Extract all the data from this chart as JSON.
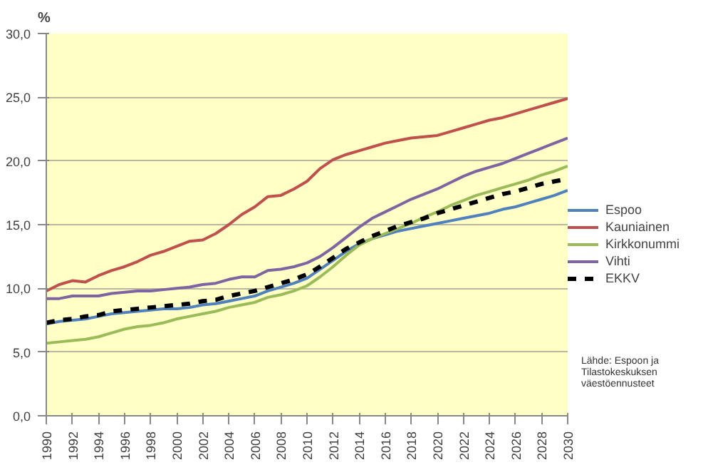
{
  "chart_data": {
    "type": "line",
    "ylabel": "%",
    "x": [
      1990,
      1991,
      1992,
      1993,
      1994,
      1995,
      1996,
      1997,
      1998,
      1999,
      2000,
      2001,
      2002,
      2003,
      2004,
      2005,
      2006,
      2007,
      2008,
      2009,
      2010,
      2011,
      2012,
      2013,
      2014,
      2015,
      2016,
      2017,
      2018,
      2019,
      2020,
      2021,
      2022,
      2023,
      2024,
      2025,
      2026,
      2027,
      2028,
      2029,
      2030
    ],
    "series": [
      {
        "name": "Espoo",
        "color": "#4f81bd",
        "values": [
          7.2,
          7.4,
          7.5,
          7.6,
          7.8,
          8.0,
          8.1,
          8.2,
          8.3,
          8.4,
          8.4,
          8.5,
          8.7,
          8.8,
          9.0,
          9.2,
          9.4,
          9.8,
          10.1,
          10.4,
          10.8,
          11.5,
          12.2,
          12.9,
          13.5,
          13.9,
          14.2,
          14.5,
          14.7,
          14.9,
          15.1,
          15.3,
          15.5,
          15.7,
          15.9,
          16.2,
          16.4,
          16.7,
          17.0,
          17.3,
          17.7
        ]
      },
      {
        "name": "Kauniainen",
        "color": "#c0504d",
        "values": [
          9.8,
          10.3,
          10.6,
          10.5,
          11.0,
          11.4,
          11.7,
          12.1,
          12.6,
          12.9,
          13.3,
          13.7,
          13.8,
          14.3,
          15.0,
          15.8,
          16.4,
          17.2,
          17.3,
          17.8,
          18.4,
          19.4,
          20.1,
          20.5,
          20.8,
          21.1,
          21.4,
          21.6,
          21.8,
          21.9,
          22.0,
          22.3,
          22.6,
          22.9,
          23.2,
          23.4,
          23.7,
          24.0,
          24.3,
          24.6,
          24.9
        ]
      },
      {
        "name": "Kirkkonummi",
        "color": "#9bbb59",
        "values": [
          5.7,
          5.8,
          5.9,
          6.0,
          6.2,
          6.5,
          6.8,
          7.0,
          7.1,
          7.3,
          7.6,
          7.8,
          8.0,
          8.2,
          8.5,
          8.7,
          8.9,
          9.3,
          9.5,
          9.8,
          10.2,
          10.9,
          11.7,
          12.6,
          13.4,
          13.9,
          14.3,
          14.7,
          15.1,
          15.6,
          16.0,
          16.5,
          16.9,
          17.3,
          17.6,
          17.9,
          18.2,
          18.5,
          18.9,
          19.2,
          19.6
        ]
      },
      {
        "name": "Vihti",
        "color": "#8064a2",
        "values": [
          9.2,
          9.2,
          9.4,
          9.4,
          9.4,
          9.6,
          9.7,
          9.8,
          9.8,
          9.9,
          10.0,
          10.1,
          10.3,
          10.4,
          10.7,
          10.9,
          10.9,
          11.4,
          11.5,
          11.7,
          12.0,
          12.5,
          13.2,
          14.0,
          14.8,
          15.5,
          16.0,
          16.5,
          17.0,
          17.4,
          17.8,
          18.3,
          18.8,
          19.2,
          19.5,
          19.8,
          20.2,
          20.6,
          21.0,
          21.4,
          21.8
        ]
      },
      {
        "name": "EKKV",
        "color": "#000000",
        "line_style": "dashed",
        "values": [
          7.3,
          7.5,
          7.6,
          7.8,
          7.9,
          8.2,
          8.3,
          8.4,
          8.5,
          8.6,
          8.7,
          8.8,
          9.0,
          9.1,
          9.4,
          9.6,
          9.8,
          10.1,
          10.4,
          10.7,
          11.1,
          11.7,
          12.4,
          13.1,
          13.6,
          14.1,
          14.5,
          14.9,
          15.2,
          15.5,
          15.9,
          16.2,
          16.5,
          16.8,
          17.1,
          17.4,
          17.6,
          17.9,
          18.2,
          18.4,
          18.6
        ]
      }
    ],
    "xlim": [
      1990,
      2030
    ],
    "xticks": [
      1990,
      1992,
      1994,
      1996,
      1998,
      2000,
      2002,
      2004,
      2006,
      2008,
      2010,
      2012,
      2014,
      2016,
      2018,
      2020,
      2022,
      2024,
      2026,
      2028,
      2030
    ],
    "ylim": [
      0,
      30
    ],
    "yticks": [
      {
        "value": 0,
        "label": "0,0"
      },
      {
        "value": 5,
        "label": "5,0"
      },
      {
        "value": 10,
        "label": "10,0"
      },
      {
        "value": 15,
        "label": "15,0"
      },
      {
        "value": 20,
        "label": "20,0"
      },
      {
        "value": 25,
        "label": "25,0"
      },
      {
        "value": 30,
        "label": "30,0"
      }
    ],
    "grid": "y",
    "legend": "right",
    "line_style": "solid",
    "annotations": [
      "Lähde: Espoon ja\nTilastokeskuksen\nväestöennusteet"
    ]
  }
}
